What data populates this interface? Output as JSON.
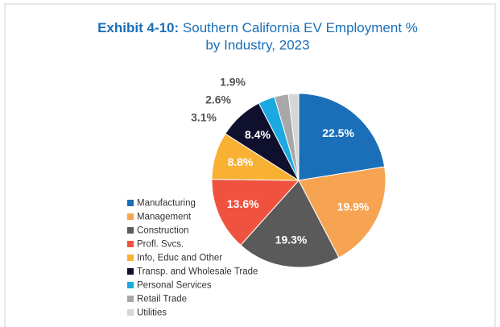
{
  "chart_data": {
    "type": "pie",
    "title_label": "Exhibit 4-10:",
    "title": "Southern California EV Employment % by Industry, 2023",
    "categories": [
      "Manufacturing",
      "Management",
      "Construction",
      "Profl. Svcs.",
      "Info, Educ and Other",
      "Transp. and Wholesale Trade",
      "Personal Services",
      "Retail Trade",
      "Utilities"
    ],
    "values": [
      22.5,
      19.9,
      19.3,
      13.6,
      8.8,
      8.4,
      3.1,
      2.6,
      1.9
    ],
    "value_labels": [
      "22.5%",
      "19.9%",
      "19.3%",
      "13.6%",
      "8.8%",
      "8.4%",
      "3.1%",
      "2.6%",
      "1.9%"
    ],
    "colors": [
      "#1a6fb8",
      "#f7a452",
      "#5a5a5a",
      "#ef5340",
      "#f8b133",
      "#0f0f2e",
      "#1ba9e1",
      "#a8a8a8",
      "#d6d6d6"
    ],
    "legend": "left"
  }
}
